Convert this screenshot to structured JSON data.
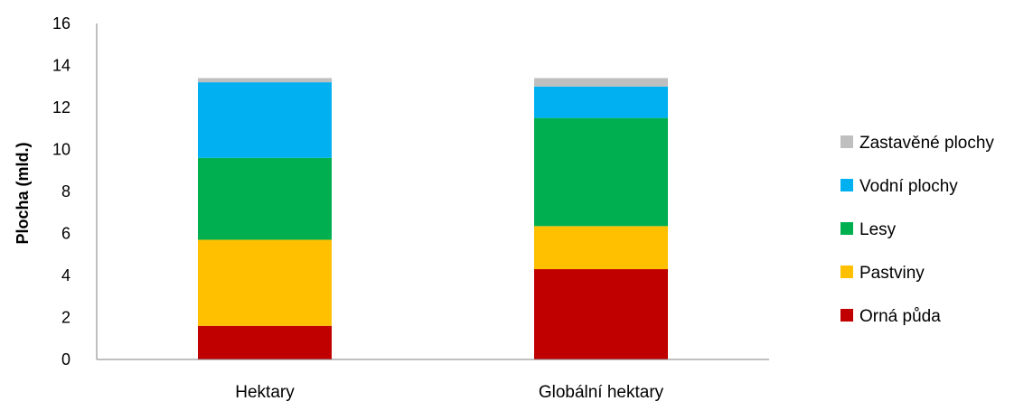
{
  "chart_data": {
    "type": "bar",
    "stacked": true,
    "categories": [
      "Hektary",
      "Globální hektary"
    ],
    "ylabel": "Plocha (mld.)",
    "xlabel": "",
    "ylim": [
      0,
      16
    ],
    "yticks": [
      0,
      2,
      4,
      6,
      8,
      10,
      12,
      14,
      16
    ],
    "grid": false,
    "legend_position": "right",
    "series": [
      {
        "name": "Orná půda",
        "color": "#c00000",
        "values": [
          1.6,
          4.3
        ]
      },
      {
        "name": "Pastviny",
        "color": "#ffc000",
        "values": [
          4.1,
          2.05
        ]
      },
      {
        "name": "Lesy",
        "color": "#00b050",
        "values": [
          3.9,
          5.15
        ]
      },
      {
        "name": "Vodní plochy",
        "color": "#00b0f0",
        "values": [
          3.6,
          1.5
        ]
      },
      {
        "name": "Zastavěné plochy",
        "color": "#bfbfbf",
        "values": [
          0.2,
          0.4
        ]
      }
    ]
  }
}
